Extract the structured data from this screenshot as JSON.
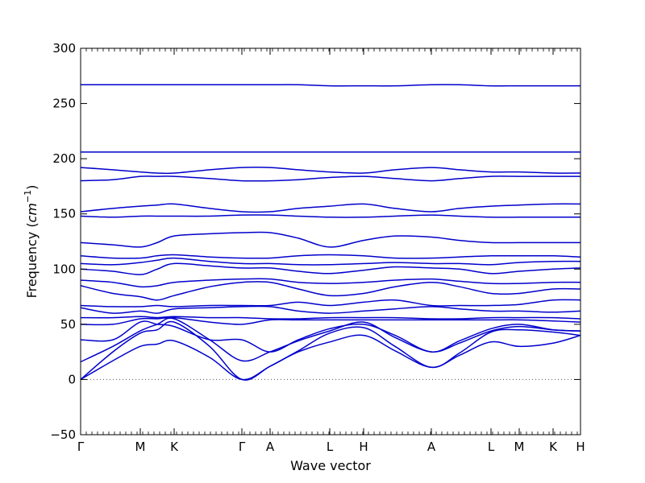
{
  "chart_data": {
    "type": "line",
    "title": "",
    "xlabel": "Wave vector",
    "ylabel": "Frequency",
    "ylabel_unit": "cm",
    "ylabel_unit_exp": "−1",
    "ylim": [
      -50,
      300
    ],
    "yticks": [
      -50,
      0,
      50,
      100,
      150,
      200,
      250,
      300
    ],
    "xlim": [
      0,
      620
    ],
    "high_symmetry_points": [
      {
        "label": "Γ",
        "x": 0
      },
      {
        "label": "M",
        "x": 74
      },
      {
        "label": "K",
        "x": 116
      },
      {
        "label": "Γ",
        "x": 200
      },
      {
        "label": "A",
        "x": 235
      },
      {
        "label": "L",
        "x": 309
      },
      {
        "label": "H",
        "x": 351
      },
      {
        "label": "A",
        "x": 435
      },
      {
        "label": "L",
        "x": 509
      },
      {
        "label": "M",
        "x": 544
      },
      {
        "label": "K",
        "x": 586
      },
      {
        "label": "H",
        "x": 620
      }
    ],
    "minor_tick_step": 7,
    "zero_line": true,
    "line_color": "#0000cc",
    "grid": false,
    "series": [
      {
        "x": [
          0,
          40,
          74,
          95,
          116,
          160,
          200,
          235,
          270,
          309,
          351,
          390,
          435,
          470,
          509,
          544,
          586,
          620
        ],
        "y": [
          0,
          17,
          30,
          32,
          35,
          20,
          0,
          12,
          25,
          34,
          40,
          26,
          11,
          22,
          34,
          30,
          33,
          40
        ]
      },
      {
        "x": [
          0,
          40,
          74,
          95,
          116,
          160,
          200,
          235,
          270,
          309,
          351,
          390,
          435,
          470,
          509,
          544,
          586,
          620
        ],
        "y": [
          0,
          25,
          42,
          45,
          52,
          30,
          0,
          12,
          26,
          42,
          47,
          30,
          11,
          24,
          43,
          45,
          43,
          40
        ]
      },
      {
        "x": [
          0,
          40,
          74,
          95,
          116,
          160,
          200,
          235,
          270,
          309,
          351,
          390,
          435,
          470,
          509,
          544,
          586,
          620
        ],
        "y": [
          16,
          30,
          44,
          50,
          55,
          36,
          17,
          25,
          35,
          44,
          52,
          38,
          25,
          33,
          44,
          48,
          45,
          44
        ]
      },
      {
        "x": [
          0,
          40,
          74,
          95,
          116,
          160,
          200,
          235,
          270,
          309,
          351,
          390,
          435,
          470,
          509,
          544,
          586,
          620
        ],
        "y": [
          36,
          36,
          52,
          50,
          48,
          36,
          36,
          25,
          36,
          46,
          50,
          40,
          25,
          35,
          46,
          50,
          45,
          44
        ]
      },
      {
        "x": [
          0,
          40,
          74,
          95,
          116,
          160,
          200,
          235,
          270,
          309,
          351,
          390,
          435,
          470,
          509,
          544,
          586,
          620
        ],
        "y": [
          50,
          50,
          55,
          55,
          56,
          52,
          50,
          54,
          54,
          54,
          54,
          54,
          54,
          54,
          54,
          54,
          53,
          52
        ]
      },
      {
        "x": [
          0,
          40,
          74,
          95,
          116,
          160,
          200,
          235,
          270,
          309,
          351,
          390,
          435,
          470,
          509,
          544,
          586,
          620
        ],
        "y": [
          56,
          56,
          57,
          56,
          57,
          56,
          56,
          55,
          55,
          56,
          56,
          56,
          55,
          55,
          56,
          56,
          56,
          55
        ]
      },
      {
        "x": [
          0,
          40,
          74,
          95,
          116,
          160,
          200,
          235,
          270,
          309,
          351,
          390,
          435,
          470,
          509,
          544,
          586,
          620
        ],
        "y": [
          65,
          60,
          62,
          60,
          64,
          65,
          66,
          66,
          62,
          60,
          62,
          64,
          66,
          64,
          62,
          62,
          61,
          62
        ]
      },
      {
        "x": [
          0,
          40,
          74,
          95,
          116,
          160,
          200,
          235,
          270,
          309,
          351,
          390,
          435,
          470,
          509,
          544,
          586,
          620
        ],
        "y": [
          67,
          66,
          66,
          67,
          66,
          67,
          67,
          67,
          70,
          67,
          70,
          72,
          67,
          67,
          67,
          68,
          72,
          72
        ]
      },
      {
        "x": [
          0,
          40,
          74,
          95,
          116,
          160,
          200,
          235,
          270,
          309,
          351,
          390,
          435,
          470,
          509,
          544,
          586,
          620
        ],
        "y": [
          85,
          78,
          75,
          72,
          76,
          84,
          88,
          88,
          82,
          76,
          78,
          84,
          88,
          84,
          78,
          78,
          82,
          82
        ]
      },
      {
        "x": [
          0,
          40,
          74,
          95,
          116,
          160,
          200,
          235,
          270,
          309,
          351,
          390,
          435,
          470,
          509,
          544,
          586,
          620
        ],
        "y": [
          90,
          88,
          84,
          85,
          88,
          90,
          91,
          91,
          88,
          87,
          88,
          90,
          91,
          89,
          87,
          87,
          88,
          88
        ]
      },
      {
        "x": [
          0,
          40,
          74,
          95,
          116,
          160,
          200,
          235,
          270,
          309,
          351,
          390,
          435,
          470,
          509,
          544,
          586,
          620
        ],
        "y": [
          100,
          98,
          95,
          100,
          105,
          103,
          101,
          101,
          98,
          96,
          99,
          102,
          101,
          100,
          96,
          98,
          100,
          101
        ]
      },
      {
        "x": [
          0,
          40,
          74,
          95,
          116,
          160,
          200,
          235,
          270,
          309,
          351,
          390,
          435,
          470,
          509,
          544,
          586,
          620
        ],
        "y": [
          105,
          104,
          106,
          108,
          110,
          107,
          105,
          105,
          104,
          104,
          105,
          106,
          105,
          105,
          104,
          106,
          107,
          107
        ]
      },
      {
        "x": [
          0,
          40,
          74,
          95,
          116,
          160,
          200,
          235,
          270,
          309,
          351,
          390,
          435,
          470,
          509,
          544,
          586,
          620
        ],
        "y": [
          112,
          110,
          110,
          112,
          113,
          111,
          110,
          110,
          112,
          113,
          112,
          110,
          110,
          111,
          112,
          112,
          112,
          111
        ]
      },
      {
        "x": [
          0,
          40,
          74,
          95,
          116,
          160,
          200,
          235,
          270,
          309,
          351,
          390,
          435,
          470,
          509,
          544,
          586,
          620
        ],
        "y": [
          124,
          122,
          120,
          124,
          130,
          132,
          133,
          133,
          128,
          120,
          126,
          130,
          129,
          126,
          124,
          124,
          124,
          124
        ]
      },
      {
        "x": [
          0,
          40,
          74,
          95,
          116,
          160,
          200,
          235,
          270,
          309,
          351,
          390,
          435,
          470,
          509,
          544,
          586,
          620
        ],
        "y": [
          148,
          147,
          148,
          148,
          148,
          148,
          149,
          149,
          148,
          147,
          147,
          148,
          149,
          148,
          147,
          147,
          147,
          147
        ]
      },
      {
        "x": [
          0,
          40,
          74,
          95,
          116,
          160,
          200,
          235,
          270,
          309,
          351,
          390,
          435,
          470,
          509,
          544,
          586,
          620
        ],
        "y": [
          152,
          155,
          157,
          158,
          159,
          155,
          152,
          152,
          155,
          157,
          159,
          155,
          152,
          155,
          157,
          158,
          159,
          159
        ]
      },
      {
        "x": [
          0,
          40,
          74,
          95,
          116,
          160,
          200,
          235,
          270,
          309,
          351,
          390,
          435,
          470,
          509,
          544,
          586,
          620
        ],
        "y": [
          180,
          181,
          184,
          184,
          184,
          182,
          180,
          180,
          181,
          183,
          184,
          182,
          180,
          182,
          184,
          184,
          184,
          184
        ]
      },
      {
        "x": [
          0,
          40,
          74,
          95,
          116,
          160,
          200,
          235,
          270,
          309,
          351,
          390,
          435,
          470,
          509,
          544,
          586,
          620
        ],
        "y": [
          192,
          190,
          188,
          187,
          187,
          190,
          192,
          192,
          190,
          188,
          187,
          190,
          192,
          190,
          188,
          188,
          187,
          187
        ]
      },
      {
        "x": [
          0,
          40,
          74,
          95,
          116,
          160,
          200,
          235,
          270,
          309,
          351,
          390,
          435,
          470,
          509,
          544,
          586,
          620
        ],
        "y": [
          206,
          206,
          206,
          206,
          206,
          206,
          206,
          206,
          206,
          206,
          206,
          206,
          206,
          206,
          206,
          206,
          206,
          206
        ]
      },
      {
        "x": [
          0,
          40,
          74,
          95,
          116,
          160,
          200,
          235,
          270,
          309,
          351,
          390,
          435,
          470,
          509,
          544,
          586,
          620
        ],
        "y": [
          267,
          267,
          267,
          267,
          267,
          267,
          267,
          267,
          267,
          266,
          266,
          266,
          267,
          267,
          266,
          266,
          266,
          266
        ]
      }
    ]
  }
}
